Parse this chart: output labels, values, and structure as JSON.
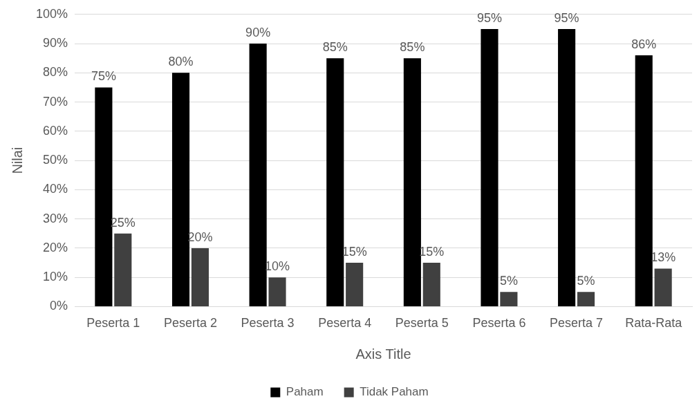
{
  "chart_data": {
    "type": "bar",
    "xlabel": "Axis Title",
    "ylabel": "Nilai",
    "categories": [
      "Peserta 1",
      "Peserta 2",
      "Peserta 3",
      "Peserta 4",
      "Peserta 5",
      "Peserta 6",
      "Peserta 7",
      "Rata-Rata"
    ],
    "series": [
      {
        "name": "Paham",
        "color": "#000000",
        "values": [
          75,
          80,
          90,
          85,
          85,
          95,
          95,
          86
        ],
        "value_labels": [
          "75%",
          "80%",
          "90%",
          "85%",
          "85%",
          "95%",
          "95%",
          "86%"
        ]
      },
      {
        "name": "Tidak Paham",
        "color": "#404040",
        "values": [
          25,
          20,
          10,
          15,
          15,
          5,
          5,
          13
        ],
        "value_labels": [
          "25%",
          "20%",
          "10%",
          "15%",
          "15%",
          "5%",
          "5%",
          "13%"
        ]
      }
    ],
    "ylim": [
      0,
      100
    ],
    "yticks": [
      {
        "value": 0,
        "label": "0%"
      },
      {
        "value": 10,
        "label": "10%"
      },
      {
        "value": 20,
        "label": "20%"
      },
      {
        "value": 30,
        "label": "30%"
      },
      {
        "value": 40,
        "label": "40%"
      },
      {
        "value": 50,
        "label": "50%"
      },
      {
        "value": 60,
        "label": "60%"
      },
      {
        "value": 70,
        "label": "70%"
      },
      {
        "value": 80,
        "label": "80%"
      },
      {
        "value": 90,
        "label": "90%"
      },
      {
        "value": 100,
        "label": "100%"
      }
    ],
    "grid": "y",
    "legend": "bottom"
  }
}
